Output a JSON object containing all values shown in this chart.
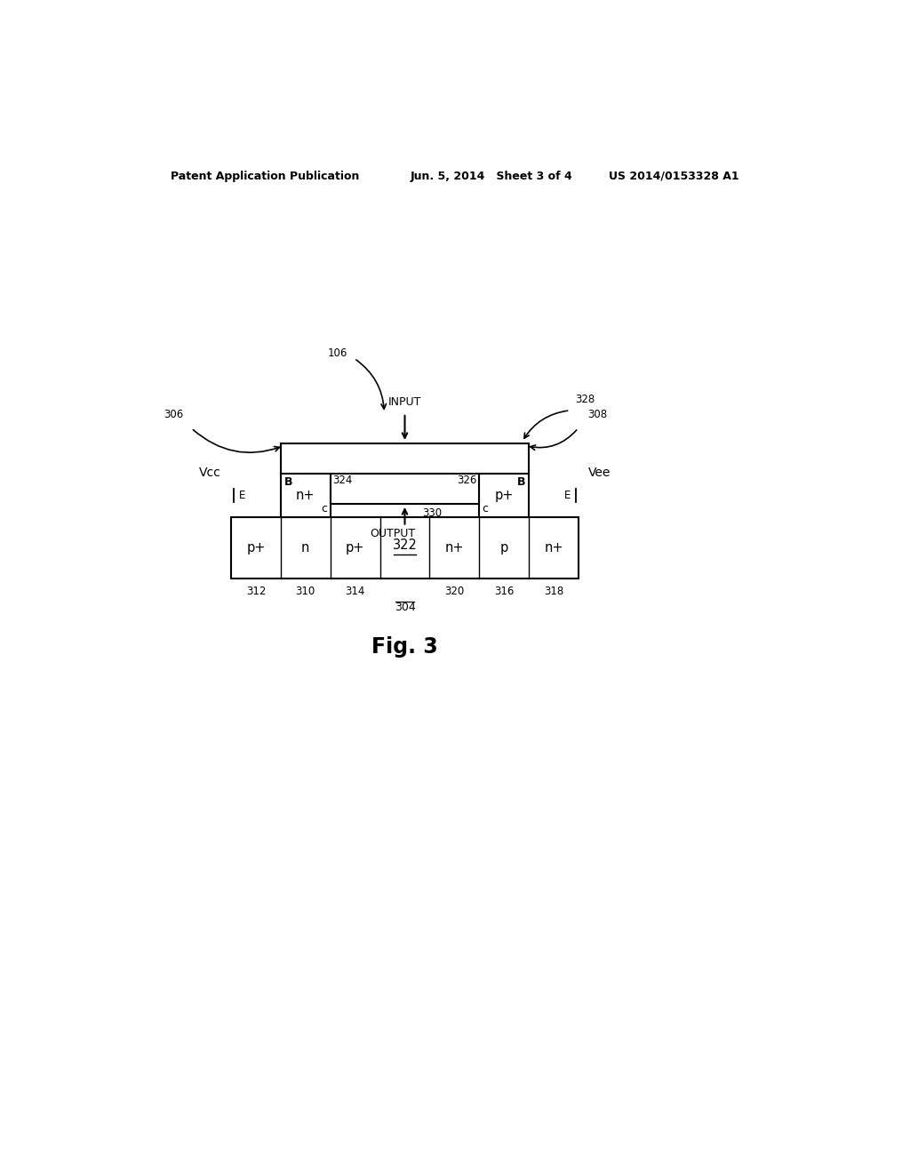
{
  "bg_color": "#ffffff",
  "text_color": "#000000",
  "header_left": "Patent Application Publication",
  "header_mid": "Jun. 5, 2014   Sheet 3 of 4",
  "header_right": "US 2014/0153328 A1",
  "fig_label": "Fig. 3"
}
